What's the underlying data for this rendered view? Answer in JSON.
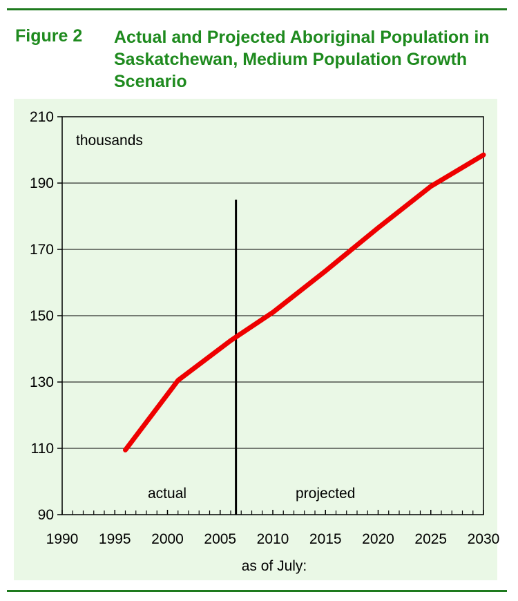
{
  "figure": {
    "label": "Figure 2",
    "title": "Actual and Projected Aboriginal Population in Saskatchewan, Medium Population Growth Scenario"
  },
  "colors": {
    "title": "#1e8a1e",
    "line": "#ee0000",
    "panel": "#eaf8e6",
    "rule": "#1e7a1e"
  },
  "chart_data": {
    "type": "line",
    "title": "Actual and Projected Aboriginal Population in Saskatchewan, Medium Population Growth Scenario",
    "unit_label": "thousands",
    "xlabel": "as of July:",
    "ylabel": "",
    "xlim": [
      1990,
      2030
    ],
    "ylim": [
      90,
      210
    ],
    "x_ticks": [
      1990,
      1995,
      2000,
      2005,
      2010,
      2015,
      2020,
      2025,
      2030
    ],
    "y_ticks": [
      90,
      110,
      130,
      150,
      170,
      190,
      210
    ],
    "grid": "horizontal",
    "series": [
      {
        "name": "",
        "x": [
          1996,
          2001,
          2006,
          2010,
          2015,
          2020,
          2025,
          2030
        ],
        "values": [
          109.5,
          130.5,
          142.5,
          151,
          163.5,
          176.5,
          189,
          198.5
        ]
      }
    ],
    "divider_year": 2006.5,
    "annotations": {
      "actual": "actual",
      "projected": "projected"
    }
  }
}
